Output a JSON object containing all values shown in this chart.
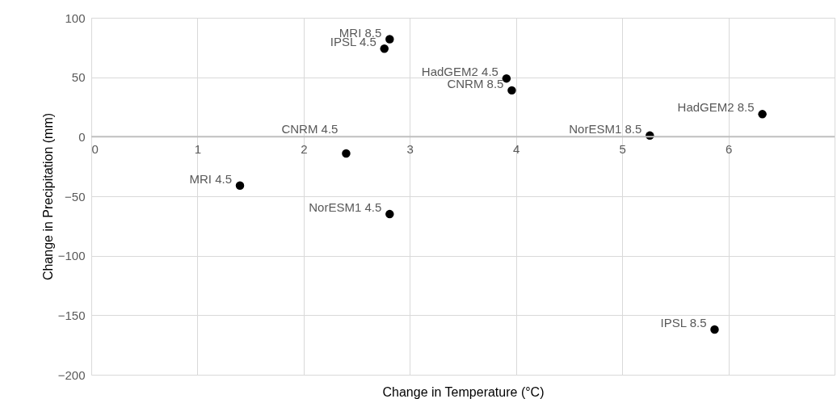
{
  "chart_data": {
    "type": "scatter",
    "xlabel": "Change in Temperature (°C)",
    "ylabel": "Change in Precipitation (mm)",
    "x": [
      2.81,
      2.76,
      3.91,
      3.96,
      2.4,
      1.4,
      2.81,
      5.26,
      6.32,
      5.87
    ],
    "series": [
      {
        "color": "#000000",
        "values": [
          82,
          74,
          49,
          39,
          -14,
          -41,
          -65,
          1,
          19,
          -162
        ]
      }
    ],
    "annotations": [
      {
        "text": "MRI 8.5",
        "x": 2.81,
        "y": 82
      },
      {
        "text": "IPSL 4.5",
        "x": 2.76,
        "y": 74
      },
      {
        "text": "HadGEM2 4.5",
        "x": 3.91,
        "y": 49
      },
      {
        "text": "CNRM 8.5",
        "x": 3.96,
        "y": 39
      },
      {
        "text": "CNRM 4.5",
        "x": 2.4,
        "y": -14
      },
      {
        "text": "MRI 4.5",
        "x": 1.4,
        "y": -41
      },
      {
        "text": "NorESM1 4.5",
        "x": 2.81,
        "y": -65
      },
      {
        "text": "NorESM1 8.5",
        "x": 5.26,
        "y": 1
      },
      {
        "text": "HadGEM2 8.5",
        "x": 6.32,
        "y": 19
      },
      {
        "text": "IPSL 8.5",
        "x": 5.87,
        "y": -162
      }
    ],
    "xlim": [
      0,
      7
    ],
    "xticks": [
      0,
      1,
      2,
      3,
      4,
      5,
      6
    ],
    "ylim": [
      -200,
      100
    ],
    "yticks": [
      -200,
      -150,
      -100,
      -50,
      0,
      50,
      100
    ],
    "grid": true,
    "marker": "circle"
  }
}
